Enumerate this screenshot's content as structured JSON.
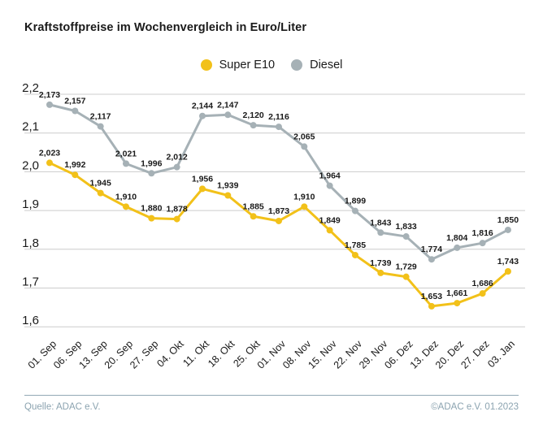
{
  "title": "Kraftstoffpreise im Wochenvergleich in Euro/Liter",
  "footer": {
    "source": "Quelle: ADAC e.V.",
    "copyright": "©ADAC e.V.  01.2023"
  },
  "colors": {
    "super_e10": "#f2c119",
    "diesel": "#a6b1b6",
    "gridline": "#cccccc",
    "label_text": "#1a1a1a",
    "footer_text": "#8ba3b0"
  },
  "chart_data": {
    "type": "line",
    "title": "Kraftstoffpreise im Wochenvergleich in Euro/Liter",
    "xlabel": "",
    "ylabel": "Euro/Liter",
    "ylim": [
      1.6,
      2.2
    ],
    "ytick_step": 0.1,
    "grid": true,
    "legend_position": "top",
    "decimal_format": "comma",
    "categories": [
      "01. Sep",
      "06. Sep",
      "13. Sep",
      "20. Sep",
      "27. Sep",
      "04. Okt",
      "11. Okt",
      "18. Okt",
      "25. Okt",
      "01. Nov",
      "08. Nov",
      "15. Nov",
      "22. Nov",
      "29. Nov",
      "06. Dez",
      "13. Dez",
      "20. Dez",
      "27. Dez",
      "03. Jan"
    ],
    "series": [
      {
        "name": "Super E10",
        "color": "#f2c119",
        "values": [
          2.023,
          1.992,
          1.945,
          1.91,
          1.88,
          1.878,
          1.956,
          1.939,
          1.885,
          1.873,
          1.91,
          1.849,
          1.785,
          1.739,
          1.729,
          1.653,
          1.661,
          1.686,
          1.743
        ]
      },
      {
        "name": "Diesel",
        "color": "#a6b1b6",
        "values": [
          2.173,
          2.157,
          2.117,
          2.021,
          1.996,
          2.012,
          2.144,
          2.147,
          2.12,
          2.116,
          2.065,
          1.964,
          1.899,
          1.843,
          1.833,
          1.774,
          1.804,
          1.816,
          1.85
        ]
      }
    ]
  }
}
